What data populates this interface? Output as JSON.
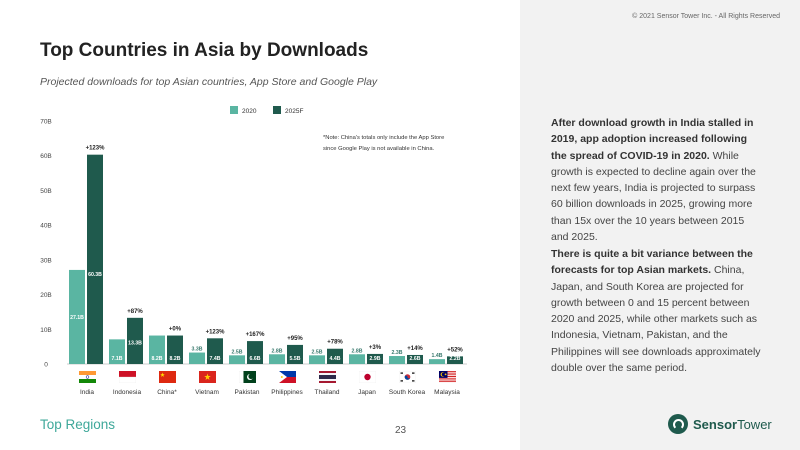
{
  "copyright": "© 2021 Sensor Tower Inc. - All Rights Reserved",
  "title": "Top Countries in Asia by Downloads",
  "subtitle": "Projected downloads for top Asian countries, App Store and Google Play",
  "footer_left": "Top Regions",
  "page_number": "23",
  "logo": {
    "bold": "Sensor",
    "light": "Tower"
  },
  "paragraphs": [
    {
      "bold": "After download growth in India stalled in 2019, app adoption increased following the spread of COVID-19 in 2020.",
      "text": " While growth is expected to decline again over the next few years, India is projected to surpass 60 billion downloads in 2025, growing more than 15x over the 10 years between 2015 and 2025."
    },
    {
      "bold": "There is quite a bit variance between the forecasts for top Asian markets.",
      "text": " China, Japan, and South Korea are projected for growth between 0 and 15 percent between 2020 and 2025, while other markets such as Indonesia, Vietnam, Pakistan, and the Philippines will see downloads approximately double over the same period."
    }
  ],
  "colors": {
    "y2020": "#5ab5a2",
    "y2025": "#1f5a4d",
    "accent": "#3fa89a"
  },
  "chart_data": {
    "type": "bar",
    "note": [
      "*Note: China's totals only include the App Store",
      "since Google Play is not available in China."
    ],
    "legend_placement": "top-center",
    "ylim": [
      0,
      70
    ],
    "yticks": [
      "0",
      "10B",
      "20B",
      "30B",
      "40B",
      "50B",
      "60B",
      "70B"
    ],
    "grid": false,
    "categories": [
      "India",
      "Indonesia",
      "China*",
      "Vietnam",
      "Pakistan",
      "Philippines",
      "Thailand",
      "Japan",
      "South Korea",
      "Malaysia"
    ],
    "flag_icons": [
      "india-flag-icon",
      "indonesia-flag-icon",
      "china-flag-icon",
      "vietnam-flag-icon",
      "pakistan-flag-icon",
      "philippines-flag-icon",
      "thailand-flag-icon",
      "japan-flag-icon",
      "south-korea-flag-icon",
      "malaysia-flag-icon"
    ],
    "series": [
      {
        "name": "2020",
        "values": [
          27.1,
          7.1,
          8.2,
          3.3,
          2.5,
          2.8,
          2.5,
          2.8,
          2.3,
          1.4
        ],
        "labels": [
          "27.1B",
          "7.1B",
          "8.2B",
          "3.3B",
          "2.5B",
          "2.8B",
          "2.5B",
          "2.8B",
          "2.3B",
          "1.4B"
        ]
      },
      {
        "name": "2025F",
        "values": [
          60.3,
          13.3,
          8.2,
          7.4,
          6.6,
          5.5,
          4.4,
          2.9,
          2.6,
          2.2
        ],
        "labels": [
          "60.3B",
          "13.3B",
          "8.2B",
          "7.4B",
          "6.6B",
          "5.5B",
          "4.4B",
          "2.9B",
          "2.6B",
          "2.2B"
        ]
      }
    ],
    "growth_labels": [
      "+123%",
      "+87%",
      "+0%",
      "+123%",
      "+167%",
      "+95%",
      "+78%",
      "+3%",
      "+14%",
      "+52%"
    ]
  }
}
